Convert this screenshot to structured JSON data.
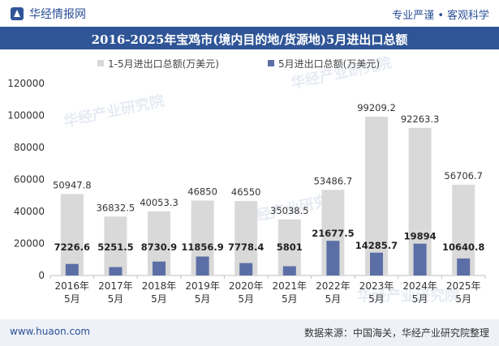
{
  "header": {
    "brand": "华经情报网",
    "tag1": "专业严谨",
    "tag2": "客观科学"
  },
  "colors": {
    "series1": "#d9d9d9",
    "series2": "#5b6fa6",
    "accent": "#2f5597"
  },
  "watermark": "华经产业研究院",
  "footer": {
    "site": "www.huaon.com",
    "source": "数据来源：中国海关，华经产业研究院整理"
  },
  "chart_data": {
    "type": "bar",
    "title": "2016-2025年宝鸡市(境内目的地/货源地)5月进出口总额",
    "categories": [
      "2016年\n5月",
      "2017年\n5月",
      "2018年\n5月",
      "2019年\n5月",
      "2020年\n5月",
      "2021年\n5月",
      "2022年\n5月",
      "2023年\n5月",
      "2024年\n5月",
      "2025年\n5月"
    ],
    "series": [
      {
        "name": "1-5月进出口总额(万美元)",
        "values": [
          50947.8,
          36832.5,
          40053.3,
          46850,
          46550,
          35038.5,
          53486.7,
          99209.2,
          92263.3,
          56706.7
        ],
        "labels": [
          "50947.8",
          "36832.5",
          "40053.3",
          "46850",
          "46550",
          "35038.5",
          "53486.7",
          "99209.2",
          "92263.3",
          "56706.7"
        ]
      },
      {
        "name": "5月进出口总额(万美元)",
        "values": [
          7226.6,
          5251.5,
          8730.9,
          11856.9,
          7778.4,
          5801,
          21677.5,
          14285.7,
          19894,
          10640.8
        ],
        "labels": [
          "7226.6",
          "5251.5",
          "8730.9",
          "11856.9",
          "7778.4",
          "5801",
          "21677.5",
          "14285.7",
          "19894",
          "10640.8"
        ]
      }
    ],
    "ylim": [
      0,
      120000
    ],
    "yticks": [
      "0",
      "20000",
      "40000",
      "60000",
      "80000",
      "100000",
      "120000"
    ],
    "xlabel": "",
    "ylabel": "",
    "legend": "top-center",
    "grid": false
  }
}
